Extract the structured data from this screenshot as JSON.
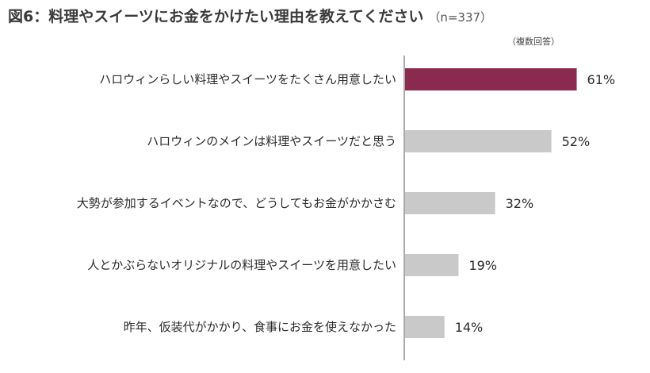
{
  "title": "図6：料理やスイーツにお金をかけたい理由を教えてください",
  "sample": "（n=337）",
  "note": "（複数回答）",
  "colors": {
    "highlight": "#8a2a4f",
    "bar": "#c9c9c9",
    "axis": "#555555"
  },
  "chart_data": {
    "type": "bar",
    "orientation": "horizontal",
    "categories": [
      "ハロウィンらしい料理やスイーツをたくさん用意したい",
      "ハロウィンのメインは料理やスイーツだと思う",
      "大勢が参加するイベントなので、どうしてもお金がかかさむ",
      "人とかぶらないオリジナルの料理やスイーツを用意したい",
      "昨年、仮装代がかかり、食事にお金を使えなかった"
    ],
    "values": [
      61,
      52,
      32,
      19,
      14
    ],
    "value_labels": [
      "61%",
      "52%",
      "32%",
      "19%",
      "14%"
    ],
    "highlight_index": 0,
    "unit": "%",
    "xlim": [
      0,
      100
    ],
    "grid": false,
    "legend": "none"
  }
}
